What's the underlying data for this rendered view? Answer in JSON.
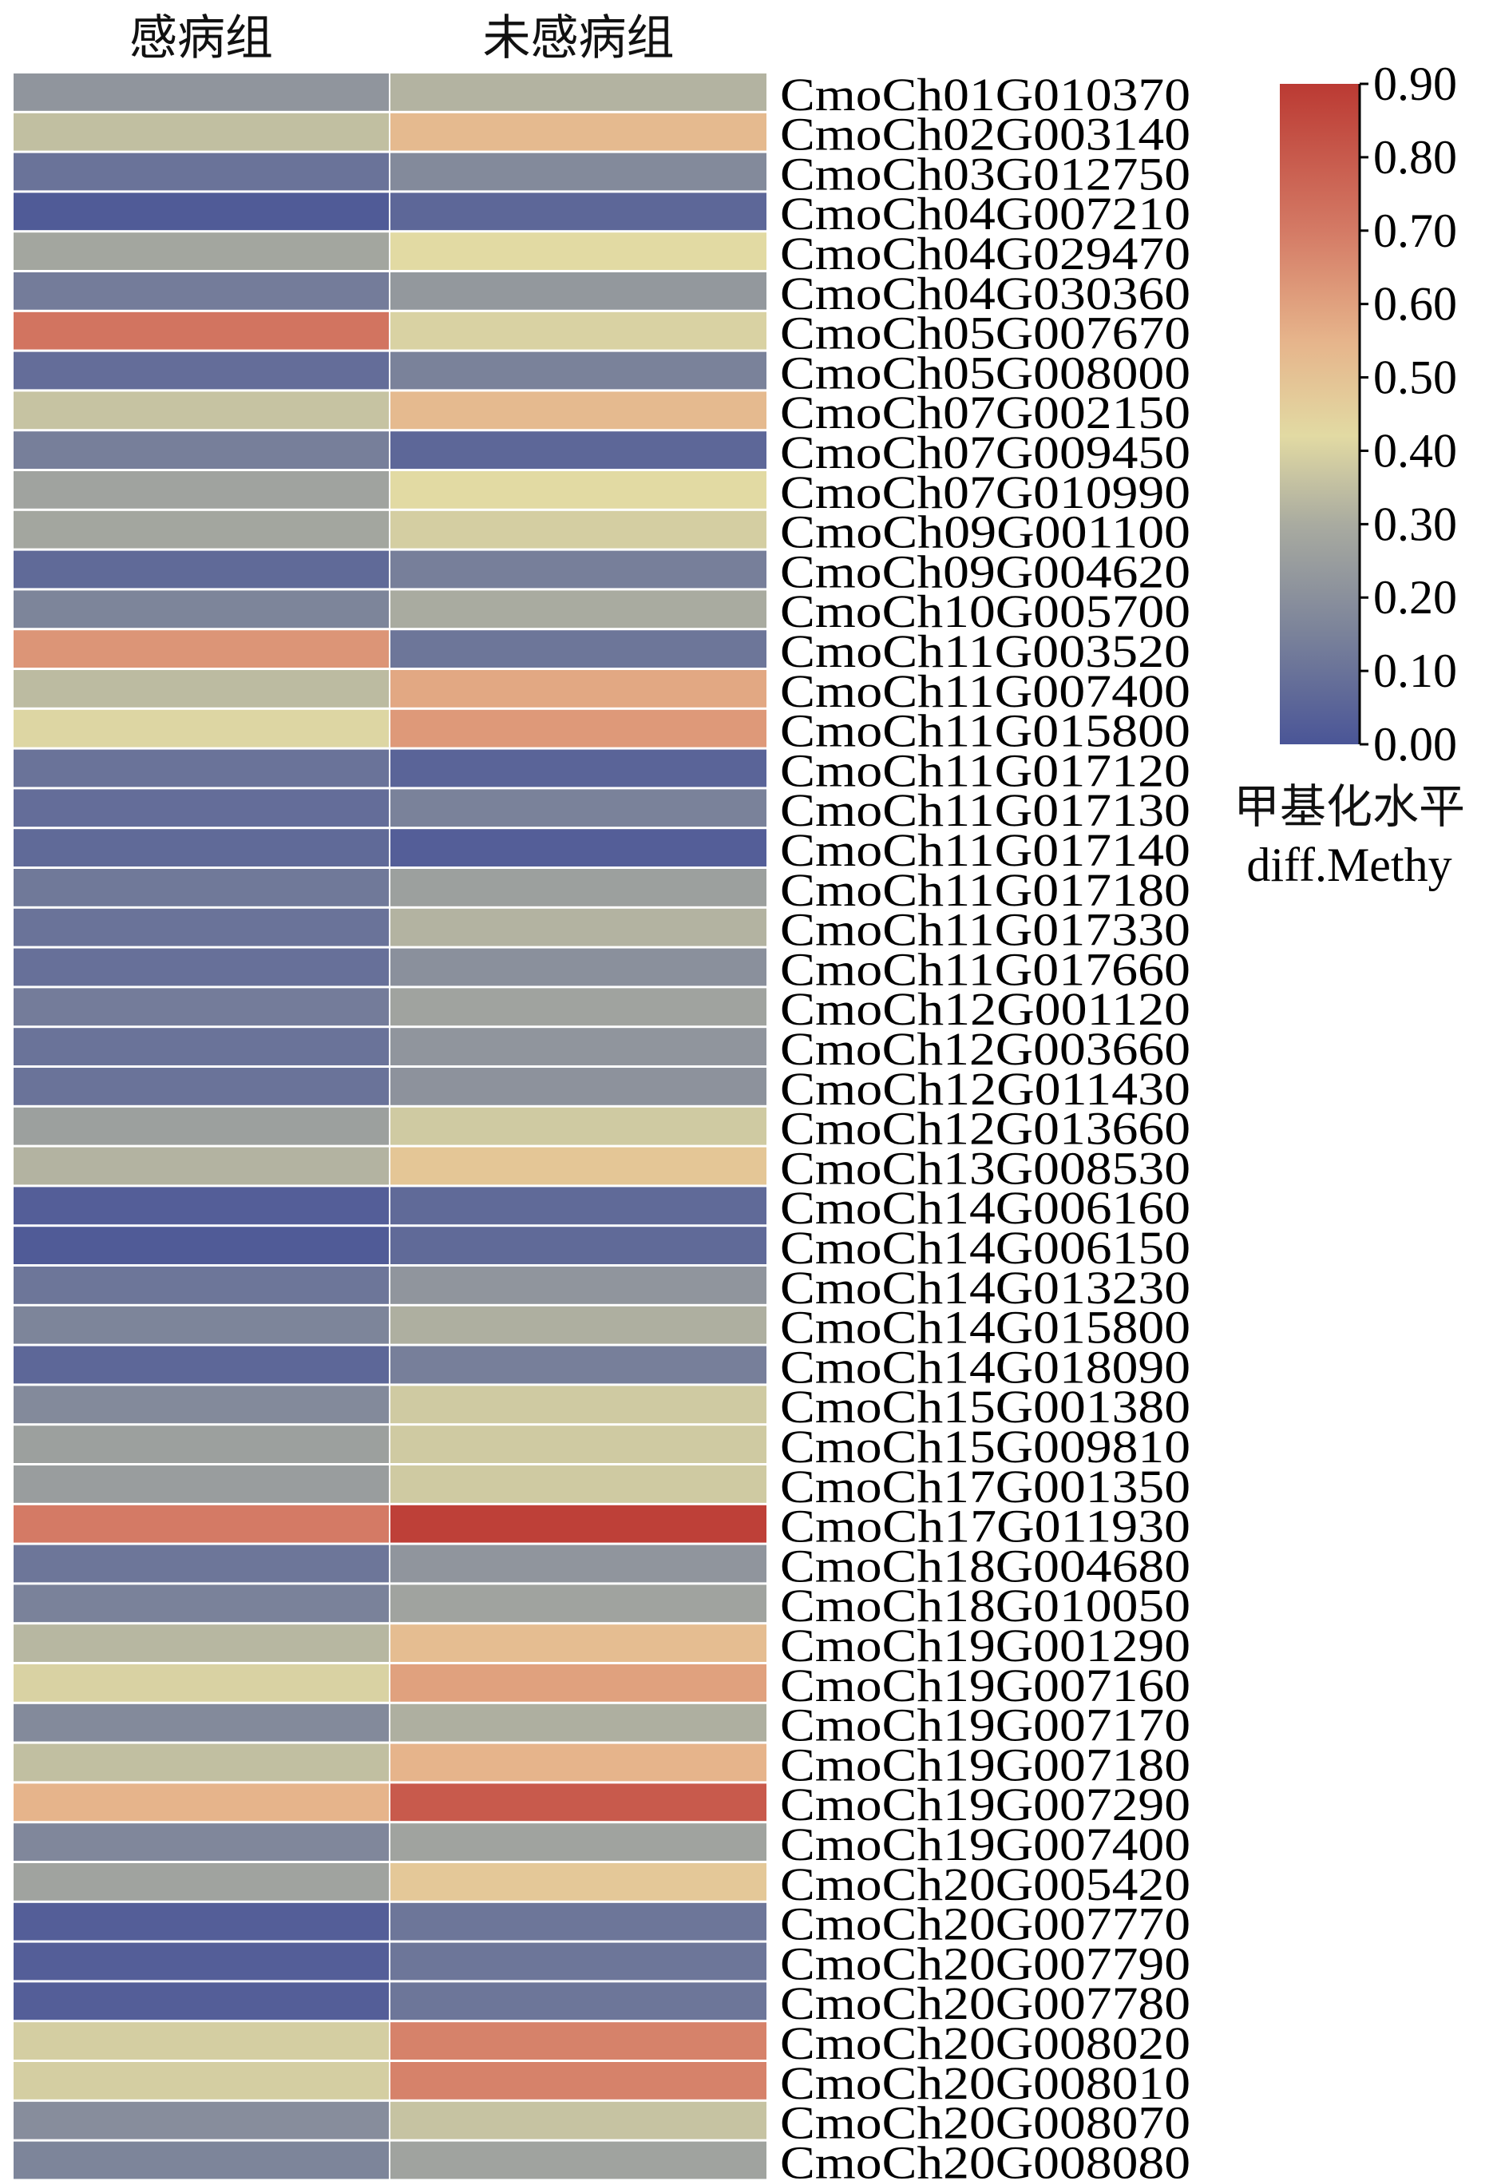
{
  "chart_data": {
    "type": "heatmap",
    "columns": [
      "感病组",
      "未感病组"
    ],
    "rows": [
      "CmoCh01G010370",
      "CmoCh02G003140",
      "CmoCh03G012750",
      "CmoCh04G007210",
      "CmoCh04G029470",
      "CmoCh04G030360",
      "CmoCh05G007670",
      "CmoCh05G008000",
      "CmoCh07G002150",
      "CmoCh07G009450",
      "CmoCh07G010990",
      "CmoCh09G001100",
      "CmoCh09G004620",
      "CmoCh10G005700",
      "CmoCh11G003520",
      "CmoCh11G007400",
      "CmoCh11G015800",
      "CmoCh11G017120",
      "CmoCh11G017130",
      "CmoCh11G017140",
      "CmoCh11G017180",
      "CmoCh11G017330",
      "CmoCh11G017660",
      "CmoCh12G001120",
      "CmoCh12G003660",
      "CmoCh12G011430",
      "CmoCh12G013660",
      "CmoCh13G008530",
      "CmoCh14G006160",
      "CmoCh14G006150",
      "CmoCh14G013230",
      "CmoCh14G015800",
      "CmoCh14G018090",
      "CmoCh15G001380",
      "CmoCh15G009810",
      "CmoCh17G001350",
      "CmoCh17G011930",
      "CmoCh18G004680",
      "CmoCh18G010050",
      "CmoCh19G001290",
      "CmoCh19G007160",
      "CmoCh19G007170",
      "CmoCh19G007180",
      "CmoCh19G007290",
      "CmoCh19G007400",
      "CmoCh20G005420",
      "CmoCh20G007770",
      "CmoCh20G007790",
      "CmoCh20G007780",
      "CmoCh20G008020",
      "CmoCh20G008010",
      "CmoCh20G008070",
      "CmoCh20G008080"
    ],
    "values": [
      [
        0.22,
        0.32
      ],
      [
        0.35,
        0.53
      ],
      [
        0.1,
        0.18
      ],
      [
        0.02,
        0.06
      ],
      [
        0.28,
        0.42
      ],
      [
        0.13,
        0.23
      ],
      [
        0.72,
        0.4
      ],
      [
        0.08,
        0.15
      ],
      [
        0.36,
        0.53
      ],
      [
        0.14,
        0.06
      ],
      [
        0.27,
        0.42
      ],
      [
        0.28,
        0.39
      ],
      [
        0.07,
        0.14
      ],
      [
        0.16,
        0.3
      ],
      [
        0.63,
        0.11
      ],
      [
        0.34,
        0.58
      ],
      [
        0.41,
        0.62
      ],
      [
        0.1,
        0.05
      ],
      [
        0.08,
        0.15
      ],
      [
        0.07,
        0.03
      ],
      [
        0.12,
        0.26
      ],
      [
        0.1,
        0.32
      ],
      [
        0.09,
        0.2
      ],
      [
        0.13,
        0.27
      ],
      [
        0.1,
        0.22
      ],
      [
        0.1,
        0.21
      ],
      [
        0.26,
        0.38
      ],
      [
        0.32,
        0.49
      ],
      [
        0.03,
        0.07
      ],
      [
        0.02,
        0.07
      ],
      [
        0.11,
        0.22
      ],
      [
        0.16,
        0.31
      ],
      [
        0.06,
        0.14
      ],
      [
        0.18,
        0.38
      ],
      [
        0.26,
        0.38
      ],
      [
        0.25,
        0.38
      ],
      [
        0.7,
        0.88
      ],
      [
        0.11,
        0.22
      ],
      [
        0.15,
        0.27
      ],
      [
        0.33,
        0.52
      ],
      [
        0.4,
        0.6
      ],
      [
        0.18,
        0.31
      ],
      [
        0.35,
        0.55
      ],
      [
        0.55,
        0.8
      ],
      [
        0.17,
        0.27
      ],
      [
        0.27,
        0.48
      ],
      [
        0.03,
        0.11
      ],
      [
        0.03,
        0.11
      ],
      [
        0.03,
        0.11
      ],
      [
        0.39,
        0.68
      ],
      [
        0.39,
        0.68
      ],
      [
        0.19,
        0.36
      ],
      [
        0.16,
        0.27
      ]
    ],
    "colorbar": {
      "range": [
        0.0,
        0.9
      ],
      "ticks": [
        "0.90",
        "0.80",
        "0.70",
        "0.60",
        "0.50",
        "0.40",
        "0.30",
        "0.20",
        "0.10",
        "0.00"
      ],
      "title": "甲基化水平",
      "subtitle": "diff.Methy",
      "colors": [
        [
          "0.00",
          "#4a5597"
        ],
        [
          "0.15",
          "#7a829a"
        ],
        [
          "0.30",
          "#a9aba0"
        ],
        [
          "0.42",
          "#e2daa3"
        ],
        [
          "0.55",
          "#e6b48b"
        ],
        [
          "0.70",
          "#d47a65"
        ],
        [
          "0.90",
          "#bb3a33"
        ]
      ]
    }
  }
}
